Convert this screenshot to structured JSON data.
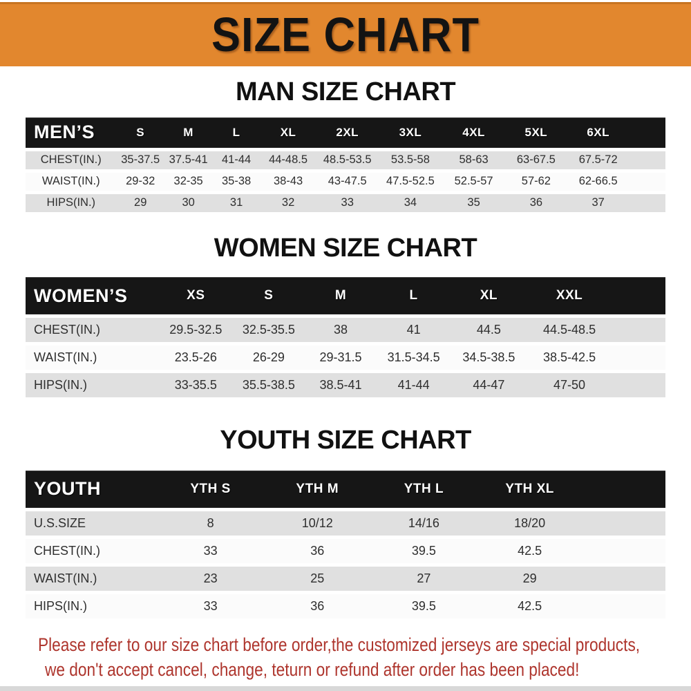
{
  "colors": {
    "banner_bg": "#E2872E",
    "header_bg": "#161616",
    "row_gray": "#E0E0E0",
    "row_white": "#FBFBFB",
    "heading_black": "#111111",
    "footer_red": "#AE352D"
  },
  "banner": {
    "title": "SIZE CHART"
  },
  "sections": [
    {
      "id": "men",
      "heading": "MAN SIZE CHART",
      "header_label": "MEN’S",
      "columns": [
        "S",
        "M",
        "L",
        "XL",
        "2XL",
        "3XL",
        "4XL",
        "5XL",
        "6XL"
      ],
      "rows": [
        {
          "label": "CHEST(IN.)",
          "values": [
            "35-37.5",
            "37.5-41",
            "41-44",
            "44-48.5",
            "48.5-53.5",
            "53.5-58",
            "58-63",
            "63-67.5",
            "67.5-72"
          ]
        },
        {
          "label": "WAIST(IN.)",
          "values": [
            "29-32",
            "32-35",
            "35-38",
            "38-43",
            "43-47.5",
            "47.5-52.5",
            "52.5-57",
            "57-62",
            "62-66.5"
          ]
        },
        {
          "label": "HIPS(IN.)",
          "values": [
            "29",
            "30",
            "31",
            "32",
            "33",
            "34",
            "35",
            "36",
            "37"
          ]
        }
      ]
    },
    {
      "id": "women",
      "heading": "WOMEN SIZE CHART",
      "header_label": "WOMEN’S",
      "columns": [
        "XS",
        "S",
        "M",
        "L",
        "XL",
        "XXL"
      ],
      "rows": [
        {
          "label": "CHEST(IN.)",
          "values": [
            "29.5-32.5",
            "32.5-35.5",
            "38",
            "41",
            "44.5",
            "44.5-48.5"
          ]
        },
        {
          "label": "WAIST(IN.)",
          "values": [
            "23.5-26",
            "26-29",
            "29-31.5",
            "31.5-34.5",
            "34.5-38.5",
            "38.5-42.5"
          ]
        },
        {
          "label": "HIPS(IN.)",
          "values": [
            "33-35.5",
            "35.5-38.5",
            "38.5-41",
            "41-44",
            "44-47",
            "47-50"
          ]
        }
      ]
    },
    {
      "id": "youth",
      "heading": "YOUTH SIZE CHART",
      "header_label": "YOUTH",
      "columns": [
        "YTH S",
        "YTH M",
        "YTH L",
        "YTH XL"
      ],
      "rows": [
        {
          "label": "U.S.SIZE",
          "values": [
            "8",
            "10/12",
            "14/16",
            "18/20"
          ]
        },
        {
          "label": "CHEST(IN.)",
          "values": [
            "33",
            "36",
            "39.5",
            "42.5"
          ]
        },
        {
          "label": "WAIST(IN.)",
          "values": [
            "23",
            "25",
            "27",
            "29"
          ]
        },
        {
          "label": "HIPS(IN.)",
          "values": [
            "33",
            "36",
            "39.5",
            "42.5"
          ]
        }
      ]
    }
  ],
  "footer": {
    "line1": "Please refer to our size chart before order,the customized jerseys are special products,",
    "line2": "we don't accept cancel, change, teturn or refund after order has been placed!"
  }
}
